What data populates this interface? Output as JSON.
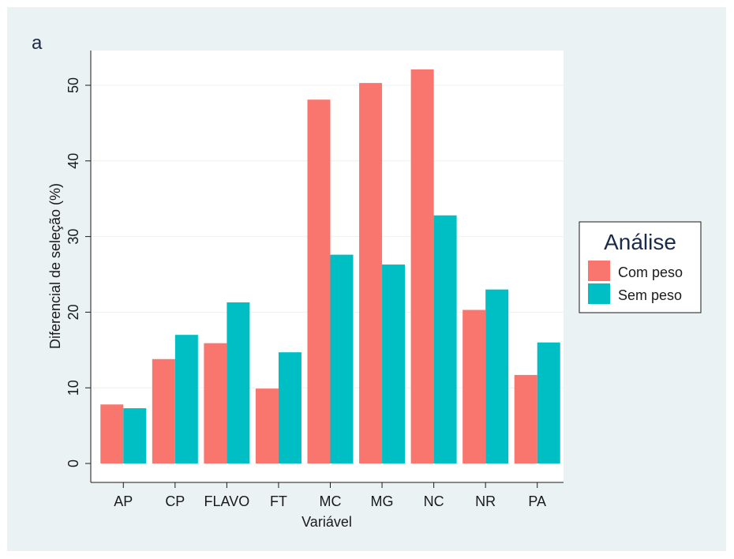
{
  "chart_data": {
    "type": "bar",
    "panel_label": "a",
    "categories": [
      "AP",
      "CP",
      "FLAVO",
      "FT",
      "MC",
      "MG",
      "NC",
      "NR",
      "PA"
    ],
    "series": [
      {
        "name": "Com peso",
        "color": "#f8766d",
        "values": [
          7.8,
          13.8,
          15.9,
          9.9,
          48.1,
          50.3,
          52.1,
          20.3,
          11.7
        ]
      },
      {
        "name": "Sem peso",
        "color": "#00bfc4",
        "values": [
          7.3,
          17.0,
          21.3,
          14.7,
          27.6,
          26.3,
          32.8,
          23.0,
          16.0
        ]
      }
    ],
    "xlabel": "Variável",
    "ylabel": "Diferencial de seleção (%)",
    "ylim": [
      0,
      55
    ],
    "yticks": [
      0,
      10,
      20,
      30,
      40,
      50
    ],
    "grid": true,
    "legend": {
      "title": "Análise",
      "placement": "right"
    }
  }
}
